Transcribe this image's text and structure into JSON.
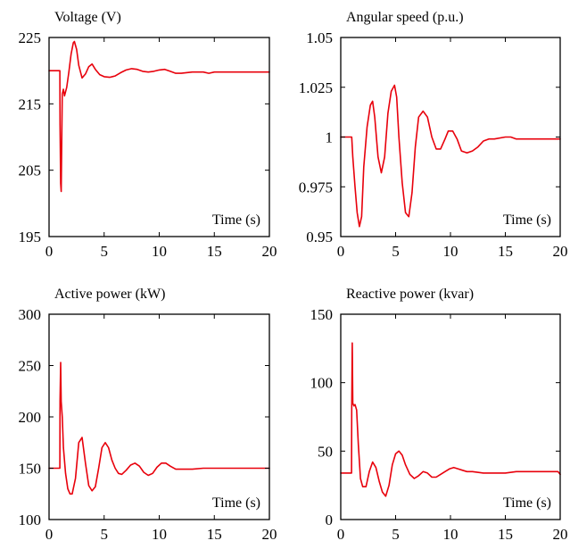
{
  "chart_data": [
    {
      "type": "line",
      "title": "Voltage (V)",
      "xlabel": "Time (s)",
      "ylabel": "",
      "xlim": [
        0,
        20
      ],
      "ylim": [
        195,
        225
      ],
      "xticks": [
        "0",
        "5",
        "10",
        "15",
        "20"
      ],
      "yticks": [
        "195",
        "205",
        "215",
        "225"
      ],
      "grid": false,
      "line_color": "#e8000b",
      "series": [
        {
          "x": [
            0,
            0.98,
            1.0,
            1.05,
            1.1,
            1.14,
            1.2,
            1.3,
            1.4,
            1.6,
            1.8,
            2.0,
            2.2,
            2.3,
            2.5,
            2.7,
            3.0,
            3.3,
            3.6,
            3.9,
            4.2,
            4.6,
            5.0,
            5.5,
            6.0,
            6.5,
            7.0,
            7.5,
            8.0,
            8.5,
            9.0,
            9.5,
            10.0,
            10.5,
            11.0,
            11.5,
            12.0,
            13.0,
            14.0,
            14.5,
            15.0,
            16.0,
            17.0,
            18.0,
            19.0,
            20.0
          ],
          "values": [
            220,
            220,
            212,
            203,
            201.8,
            208,
            216.5,
            217.2,
            216.2,
            217.5,
            219.8,
            222.5,
            224.2,
            224.4,
            223.2,
            220.8,
            218.9,
            219.5,
            220.6,
            221,
            220.2,
            219.4,
            219.1,
            219,
            219.2,
            219.7,
            220.1,
            220.3,
            220.2,
            219.9,
            219.8,
            219.9,
            220.1,
            220.2,
            219.9,
            219.6,
            219.6,
            219.8,
            219.8,
            219.6,
            219.8,
            219.8,
            219.8,
            219.8,
            219.8,
            219.8
          ]
        }
      ]
    },
    {
      "type": "line",
      "title": "Angular speed (p.u.)",
      "xlabel": "Time (s)",
      "ylabel": "",
      "xlim": [
        0,
        20
      ],
      "ylim": [
        0.95,
        1.05
      ],
      "xticks": [
        "0",
        "5",
        "10",
        "15",
        "20"
      ],
      "yticks": [
        "0.95",
        "0.975",
        "1",
        "1.025",
        "1.05"
      ],
      "grid": false,
      "line_color": "#e8000b",
      "series": [
        {
          "x": [
            0,
            1.0,
            1.1,
            1.3,
            1.5,
            1.7,
            1.9,
            2.1,
            2.4,
            2.7,
            2.9,
            3.1,
            3.4,
            3.7,
            4.0,
            4.3,
            4.6,
            4.9,
            5.1,
            5.3,
            5.6,
            5.9,
            6.2,
            6.5,
            6.8,
            7.1,
            7.5,
            7.9,
            8.3,
            8.7,
            9.1,
            9.5,
            9.8,
            10.2,
            10.6,
            11.0,
            11.5,
            12.0,
            12.5,
            13.0,
            13.5,
            14.0,
            15.0,
            15.5,
            16.0,
            17.0,
            18.0,
            19.0,
            20.0
          ],
          "values": [
            1.0,
            1.0,
            0.99,
            0.975,
            0.962,
            0.955,
            0.96,
            0.985,
            1.005,
            1.016,
            1.018,
            1.01,
            0.99,
            0.982,
            0.99,
            1.012,
            1.023,
            1.026,
            1.02,
            1.0,
            0.977,
            0.962,
            0.96,
            0.972,
            0.995,
            1.01,
            1.013,
            1.01,
            1.0,
            0.994,
            0.994,
            0.999,
            1.003,
            1.003,
            0.999,
            0.993,
            0.992,
            0.993,
            0.995,
            0.998,
            0.999,
            0.999,
            1.0,
            1.0,
            0.999,
            0.999,
            0.999,
            0.999,
            0.999
          ]
        }
      ]
    },
    {
      "type": "line",
      "title": "Active power (kW)",
      "xlabel": "Time (s)",
      "ylabel": "",
      "xlim": [
        0,
        20
      ],
      "ylim": [
        100,
        300
      ],
      "xticks": [
        "0",
        "5",
        "10",
        "15",
        "20"
      ],
      "yticks": [
        "100",
        "150",
        "200",
        "250",
        "300"
      ],
      "grid": false,
      "line_color": "#e8000b",
      "series": [
        {
          "x": [
            0,
            0.98,
            1.0,
            1.05,
            1.1,
            1.2,
            1.3,
            1.5,
            1.7,
            1.9,
            2.1,
            2.4,
            2.7,
            3.0,
            3.3,
            3.6,
            3.9,
            4.2,
            4.5,
            4.8,
            5.1,
            5.4,
            5.7,
            6.0,
            6.3,
            6.6,
            7.0,
            7.4,
            7.8,
            8.2,
            8.6,
            9.0,
            9.4,
            9.8,
            10.2,
            10.6,
            11.0,
            11.5,
            12.0,
            13.0,
            14.0,
            15.0,
            16.0,
            17.0,
            18.0,
            19.0,
            20.0
          ],
          "values": [
            150,
            150,
            215,
            253,
            215,
            200,
            170,
            145,
            130,
            125,
            125,
            140,
            175,
            180,
            155,
            133,
            128,
            132,
            150,
            170,
            175,
            170,
            158,
            150,
            145,
            144,
            148,
            153,
            155,
            152,
            146,
            143,
            145,
            151,
            155,
            155,
            152,
            149,
            149,
            149,
            150,
            150,
            150,
            150,
            150,
            150,
            150
          ]
        }
      ]
    },
    {
      "type": "line",
      "title": "Reactive power (kvar)",
      "xlabel": "Time (s)",
      "ylabel": "",
      "xlim": [
        0,
        20
      ],
      "ylim": [
        0,
        150
      ],
      "xticks": [
        "0",
        "5",
        "10",
        "15",
        "20"
      ],
      "yticks": [
        "0",
        "50",
        "100",
        "150"
      ],
      "grid": false,
      "line_color": "#e8000b",
      "series": [
        {
          "x": [
            0,
            0.98,
            1.0,
            1.05,
            1.1,
            1.2,
            1.3,
            1.45,
            1.6,
            1.8,
            2.0,
            2.3,
            2.6,
            2.9,
            3.2,
            3.5,
            3.8,
            4.1,
            4.4,
            4.7,
            5.0,
            5.3,
            5.6,
            5.9,
            6.3,
            6.7,
            7.1,
            7.5,
            7.9,
            8.3,
            8.7,
            9.1,
            9.5,
            9.9,
            10.3,
            10.7,
            11.1,
            11.5,
            12.0,
            13.0,
            14.0,
            15.0,
            16.0,
            17.0,
            18.0,
            19.0,
            19.8,
            20.0
          ],
          "values": [
            34,
            34,
            80,
            129,
            85,
            83,
            84,
            80,
            55,
            30,
            24,
            24,
            35,
            42,
            38,
            28,
            20,
            17,
            25,
            40,
            48,
            50,
            47,
            40,
            33,
            30,
            32,
            35,
            34,
            31,
            31,
            33,
            35,
            37,
            38,
            37,
            36,
            35,
            35,
            34,
            34,
            34,
            35,
            35,
            35,
            35,
            35,
            33
          ]
        }
      ]
    }
  ]
}
